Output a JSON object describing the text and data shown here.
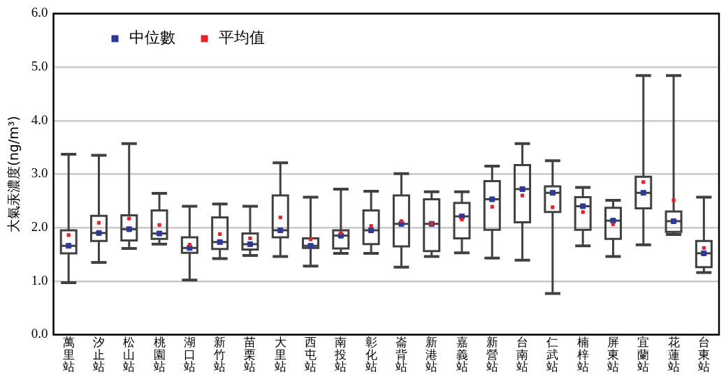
{
  "chart_data": {
    "type": "box",
    "ylabel": "大氣汞濃度(ng/m³)",
    "categories": [
      "萬里站",
      "汐止站",
      "松山站",
      "桃園站",
      "湖口站",
      "新竹站",
      "苗栗站",
      "大里站",
      "西屯站",
      "南投站",
      "彰化站",
      "崙背站",
      "新港站",
      "嘉義站",
      "新營站",
      "台南站",
      "仁武站",
      "楠梓站",
      "屏東站",
      "宜蘭站",
      "花蓮站",
      "台東站"
    ],
    "ylim": [
      0,
      6
    ],
    "yticks": [
      {
        "value": 0,
        "label": "0.0"
      },
      {
        "value": 1,
        "label": "1.0"
      },
      {
        "value": 2,
        "label": "2.0"
      },
      {
        "value": 3,
        "label": "3.0"
      },
      {
        "value": 4,
        "label": "4.0"
      },
      {
        "value": 5,
        "label": "5.0"
      },
      {
        "value": 6,
        "label": "6.0"
      }
    ],
    "grid": "y",
    "legend": "top left",
    "series": [
      {
        "type": "box",
        "color": "#404040",
        "boxes": [
          {
            "low": 0.97,
            "q1": 1.52,
            "median": 1.66,
            "q3": 1.95,
            "high": 3.37
          },
          {
            "low": 1.35,
            "q1": 1.75,
            "median": 1.9,
            "q3": 2.22,
            "high": 3.35
          },
          {
            "low": 1.61,
            "q1": 1.76,
            "median": 1.97,
            "q3": 2.23,
            "high": 3.57
          },
          {
            "low": 1.69,
            "q1": 1.79,
            "median": 1.89,
            "q3": 2.32,
            "high": 2.64
          },
          {
            "low": 1.02,
            "q1": 1.53,
            "median": 1.62,
            "q3": 1.82,
            "high": 2.4
          },
          {
            "low": 1.42,
            "q1": 1.6,
            "median": 1.73,
            "q3": 2.19,
            "high": 2.44
          },
          {
            "low": 1.48,
            "q1": 1.59,
            "median": 1.69,
            "q3": 1.89,
            "high": 2.4
          },
          {
            "low": 1.46,
            "q1": 1.82,
            "median": 1.95,
            "q3": 2.6,
            "high": 3.21
          },
          {
            "low": 1.28,
            "q1": 1.62,
            "median": 1.66,
            "q3": 1.8,
            "high": 2.57
          },
          {
            "low": 1.52,
            "q1": 1.61,
            "median": 1.85,
            "q3": 1.95,
            "high": 2.72
          },
          {
            "low": 1.52,
            "q1": 1.69,
            "median": 1.95,
            "q3": 2.32,
            "high": 2.68
          },
          {
            "low": 1.26,
            "q1": 1.65,
            "median": 2.07,
            "q3": 2.6,
            "high": 3.01
          },
          {
            "low": 1.46,
            "q1": 1.56,
            "median": 2.07,
            "q3": 2.53,
            "high": 2.67
          },
          {
            "low": 1.53,
            "q1": 1.8,
            "median": 2.21,
            "q3": 2.46,
            "high": 2.67
          },
          {
            "low": 1.43,
            "q1": 1.96,
            "median": 2.53,
            "q3": 2.87,
            "high": 3.15
          },
          {
            "low": 1.39,
            "q1": 2.1,
            "median": 2.72,
            "q3": 3.17,
            "high": 3.57
          },
          {
            "low": 0.77,
            "q1": 2.29,
            "median": 2.65,
            "q3": 2.77,
            "high": 3.25
          },
          {
            "low": 1.66,
            "q1": 1.96,
            "median": 2.4,
            "q3": 2.57,
            "high": 2.75
          },
          {
            "low": 1.46,
            "q1": 1.79,
            "median": 2.13,
            "q3": 2.37,
            "high": 2.51
          },
          {
            "low": 1.68,
            "q1": 2.36,
            "median": 2.65,
            "q3": 2.95,
            "high": 4.84
          },
          {
            "low": 1.87,
            "q1": 1.92,
            "median": 2.12,
            "q3": 2.3,
            "high": 4.84
          },
          {
            "low": 1.16,
            "q1": 1.26,
            "median": 1.52,
            "q3": 1.75,
            "high": 2.57
          }
        ]
      },
      {
        "type": "scatter",
        "name": "中位數",
        "color": "#2e3a9a",
        "x": [
          "萬里站",
          "汐止站",
          "松山站",
          "桃園站",
          "湖口站",
          "新竹站",
          "苗栗站",
          "大里站",
          "西屯站",
          "南投站",
          "彰化站",
          "崙背站",
          "新港站",
          "嘉義站",
          "新營站",
          "台南站",
          "仁武站",
          "楠梓站",
          "屏東站",
          "宜蘭站",
          "花蓮站",
          "台東站"
        ],
        "values": [
          1.66,
          1.9,
          1.97,
          1.89,
          1.62,
          1.73,
          1.69,
          1.95,
          1.66,
          1.85,
          1.95,
          2.07,
          2.07,
          2.21,
          2.53,
          2.72,
          2.65,
          2.4,
          2.13,
          2.65,
          2.12,
          1.52
        ]
      },
      {
        "type": "scatter",
        "name": "平均值",
        "color": "#e8202a",
        "x": [
          "萬里站",
          "汐止站",
          "松山站",
          "桃園站",
          "湖口站",
          "新竹站",
          "苗栗站",
          "大里站",
          "西屯站",
          "南投站",
          "彰化站",
          "崙背站",
          "新港站",
          "嘉義站",
          "新營站",
          "台南站",
          "仁武站",
          "楠梓站",
          "屏東站",
          "宜蘭站",
          "花蓮站",
          "台東站"
        ],
        "values": [
          1.86,
          2.09,
          2.17,
          2.05,
          1.68,
          1.88,
          1.8,
          2.19,
          1.78,
          1.9,
          2.03,
          2.12,
          2.07,
          2.15,
          2.39,
          2.6,
          2.38,
          2.29,
          2.06,
          2.85,
          2.51,
          1.62
        ]
      }
    ]
  }
}
